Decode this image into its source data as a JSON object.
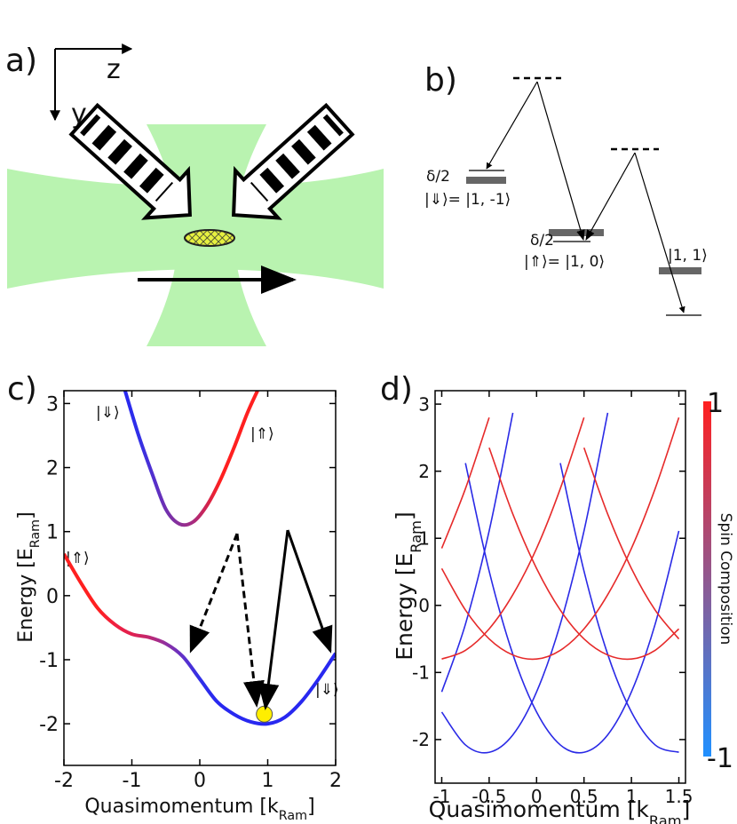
{
  "panel_a": {
    "label": "a)",
    "axis_z": "z",
    "axis_y": "y"
  },
  "panel_b": {
    "label": "b)",
    "levels": [
      {
        "detuning": "δ/2",
        "state": "|⇓⟩= |1, -1⟩"
      },
      {
        "detuning": "δ/2",
        "state": "|⇑⟩= |1, 0⟩"
      },
      {
        "state": "|1, 1⟩"
      }
    ]
  },
  "chart_data": [
    {
      "type": "line",
      "panel_label": "c)",
      "x_label": {
        "text": "Quasimomentum [k",
        "sub": "Ram",
        "end": "]"
      },
      "y_label": {
        "text": "Energy [E",
        "sub": "Ram",
        "end": "]"
      },
      "xlim": [
        -2,
        2
      ],
      "ylim": [
        -2.65,
        3.2
      ],
      "xticks": [
        -2,
        -1,
        0,
        1,
        2
      ],
      "yticks": [
        -2,
        -1,
        0,
        1,
        2,
        3
      ],
      "series": [
        {
          "x": [
            -2,
            -1.75,
            -1.5,
            -1.25,
            -1,
            -0.75,
            -0.5,
            -0.25,
            0,
            0.25,
            0.5,
            0.75,
            1,
            1.25,
            1.5,
            1.75,
            2
          ],
          "values": [
            0.65,
            0.2,
            -0.2,
            -0.45,
            -0.6,
            -0.65,
            -0.75,
            -0.95,
            -1.3,
            -1.65,
            -1.85,
            -1.97,
            -2.0,
            -1.9,
            -1.65,
            -1.3,
            -0.9
          ],
          "colors": [
            "#ff2020",
            "#ff2020",
            "#ff2020",
            "#f02040",
            "#e02050",
            "#c02870",
            "#9030a0",
            "#6030c8",
            "#3030e8",
            "#2828f0",
            "#2828f0",
            "#2828f0",
            "#2828f0",
            "#2828f0",
            "#2828f0",
            "#2828f0",
            "#2828f0"
          ]
        },
        {
          "x": [
            -1.1,
            -0.9,
            -0.7,
            -0.5,
            -0.3,
            -0.1,
            0.1,
            0.3,
            0.5,
            0.7,
            0.85
          ],
          "values": [
            3.2,
            2.5,
            1.9,
            1.35,
            1.12,
            1.15,
            1.4,
            1.8,
            2.3,
            2.85,
            3.2
          ],
          "colors": [
            "#2828f0",
            "#3030e8",
            "#5030d0",
            "#7030b0",
            "#8a3098",
            "#a82c80",
            "#d02450",
            "#ff2020",
            "#ff2020",
            "#ff2020",
            "#ff2020"
          ]
        }
      ],
      "annotations": [
        {
          "text": "|⇓⟩"
        },
        {
          "text": "|⇑⟩"
        },
        {
          "text": "|⇑⟩"
        },
        {
          "text": "|⇓⟩"
        }
      ],
      "marker": {
        "x": 0.95,
        "value": -1.85,
        "color": "#ffee00"
      }
    },
    {
      "type": "line",
      "panel_label": "d)",
      "x_label": {
        "text": "Quasimomentum [k",
        "sub": "Ram",
        "end": "]"
      },
      "y_label": {
        "text": "Energy [E",
        "sub": "Ram",
        "end": "]"
      },
      "xlim": [
        -1.07,
        1.57
      ],
      "ylim": [
        -2.65,
        3.2
      ],
      "xticks": [
        -1,
        -0.5,
        0,
        0.5,
        1,
        1.5
      ],
      "yticks": [
        -2,
        -1,
        0,
        1,
        2,
        3
      ],
      "x": [
        -1,
        -0.75,
        -0.5,
        -0.25,
        0,
        0.25,
        0.5,
        0.75,
        1,
        1.25,
        1.5
      ],
      "series": [
        {
          "color": "#2a2ae6",
          "values": [
            -1.59,
            -2.08,
            -2.19,
            -1.93,
            -1.29,
            -0.28,
            1.11,
            2.87,
            null,
            null,
            null
          ]
        },
        {
          "color": "#2a2ae6",
          "values": [
            null,
            2.12,
            0.51,
            -0.73,
            -1.59,
            -2.08,
            -2.19,
            -1.93,
            -1.29,
            -0.28,
            1.11
          ]
        },
        {
          "color": "#2a2ae6",
          "values": [
            null,
            null,
            null,
            null,
            null,
            2.12,
            0.51,
            -0.73,
            -1.59,
            -2.08,
            -2.19
          ]
        },
        {
          "color": "#2a2ae6",
          "values": [
            -1.29,
            -0.28,
            1.11,
            2.87,
            null,
            null,
            null,
            null,
            null,
            null,
            null
          ]
        },
        {
          "color": "#e62a2a",
          "values": [
            -0.8,
            -0.67,
            -0.35,
            0.16,
            0.85,
            1.74,
            2.8,
            null,
            null,
            null,
            null
          ]
        },
        {
          "color": "#e62a2a",
          "values": [
            0.55,
            -0.07,
            -0.5,
            -0.74,
            -0.8,
            -0.67,
            -0.35,
            0.16,
            0.85,
            1.74,
            2.8
          ]
        },
        {
          "color": "#e62a2a",
          "values": [
            null,
            null,
            2.35,
            1.36,
            0.55,
            -0.07,
            -0.5,
            -0.74,
            -0.8,
            -0.67,
            -0.35
          ]
        },
        {
          "color": "#e62a2a",
          "values": [
            null,
            null,
            null,
            null,
            null,
            null,
            2.35,
            1.36,
            0.55,
            -0.07,
            -0.5
          ]
        },
        {
          "color": "#e62a2a",
          "values": [
            0.85,
            1.74,
            2.8,
            null,
            null,
            null,
            null,
            null,
            null,
            null,
            null
          ]
        }
      ],
      "colorbar": {
        "label": "Spin Composition",
        "ticks": [
          1,
          -1
        ],
        "colors": [
          "#ff2020",
          "#2090ff"
        ]
      }
    }
  ]
}
